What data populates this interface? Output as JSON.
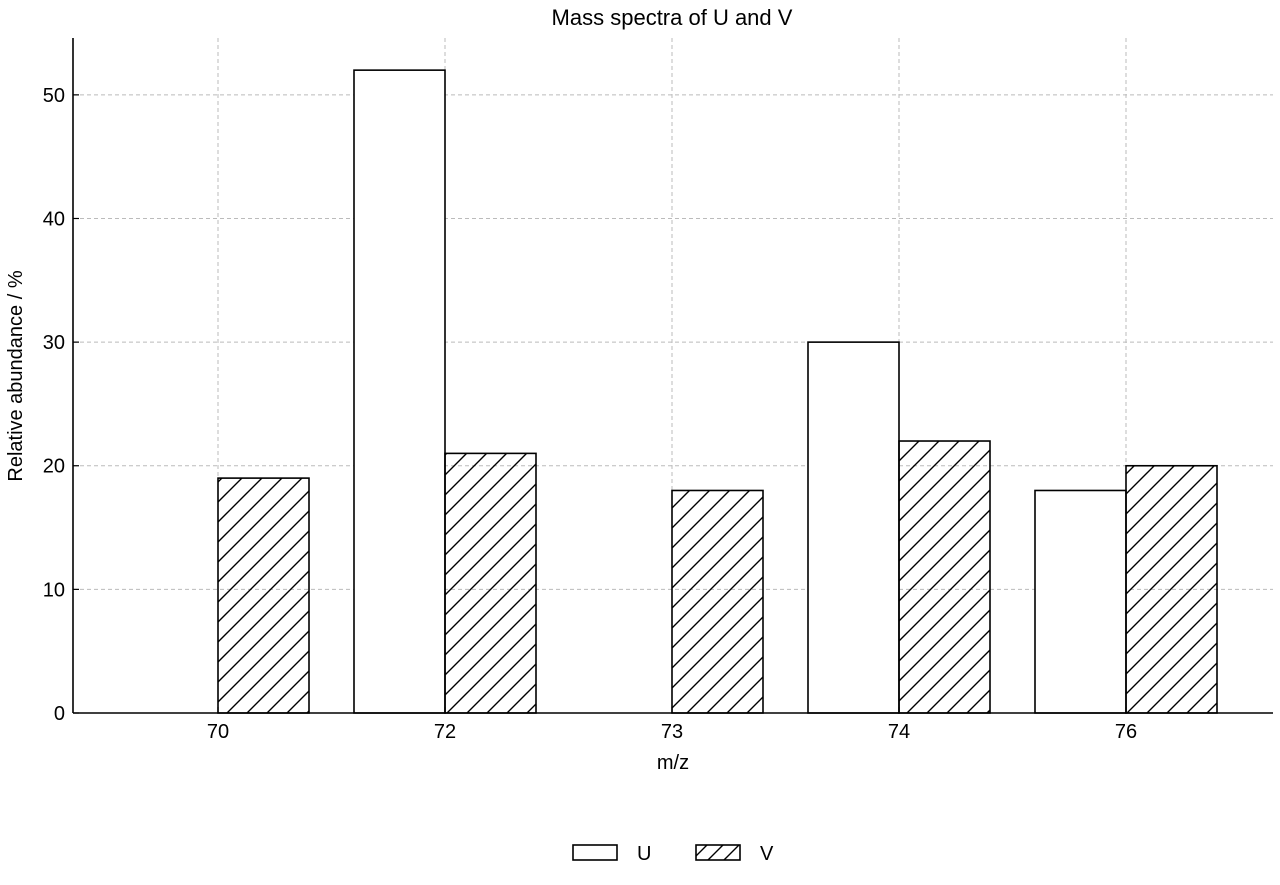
{
  "chart_data": {
    "type": "bar",
    "title": "Mass spectra of U and V",
    "xlabel": "m/z",
    "ylabel": "Relative abundance / %",
    "categories": [
      "70",
      "72",
      "73",
      "74",
      "76"
    ],
    "series": [
      {
        "name": "U",
        "values": [
          0,
          52,
          0,
          30,
          18
        ],
        "fill": "#ffffff",
        "pattern": "none"
      },
      {
        "name": "V",
        "values": [
          19,
          21,
          18,
          22,
          20
        ],
        "fill": "#ffffff",
        "pattern": "diagonal-hatch"
      }
    ],
    "ylim": [
      0,
      54.6
    ],
    "yticks": [
      0,
      10,
      20,
      30,
      40,
      50
    ],
    "grid": true,
    "grid_style": "dashed",
    "legend_position": "bottom-center",
    "colors": {
      "stroke": "#000000",
      "grid": "#bbbbbb",
      "background": "#ffffff"
    }
  }
}
